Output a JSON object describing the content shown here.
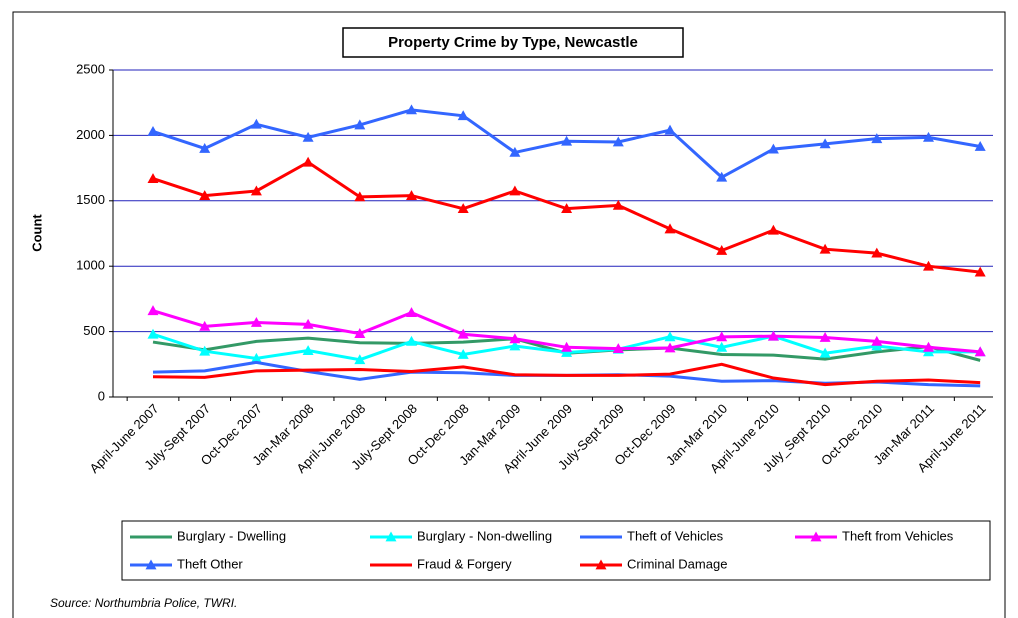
{
  "chart_data": {
    "type": "line",
    "title": "Property Crime by Type, Newcastle",
    "y_label": "Count",
    "source": "Source: Northumbria Police, TWRI.",
    "categories": [
      "April-June 2007",
      "July-Sept 2007",
      "Oct-Dec 2007",
      "Jan-Mar 2008",
      "April-June 2008",
      "July-Sept 2008",
      "Oct-Dec 2008",
      "Jan-Mar 2009",
      "April-June 2009",
      "July-Sept 2009",
      "Oct-Dec 2009",
      "Jan-Mar 2010",
      "April-June 2010",
      "July_Sept 2010",
      "Oct-Dec 2010",
      "Jan-Mar 2011",
      "April-June 2011"
    ],
    "series": [
      {
        "name": "Burglary - Dwelling",
        "color": "#339966",
        "marker": "none",
        "values": [
          420,
          360,
          425,
          450,
          415,
          410,
          420,
          445,
          335,
          360,
          375,
          325,
          320,
          290,
          345,
          385,
          280
        ]
      },
      {
        "name": "Burglary - Non-dwelling",
        "color": "#00ffff",
        "marker": "triangle",
        "values": [
          480,
          350,
          295,
          355,
          285,
          425,
          325,
          390,
          340,
          365,
          460,
          380,
          465,
          335,
          390,
          345,
          345
        ]
      },
      {
        "name": "Theft of Vehicles",
        "color": "#3366ff",
        "marker": "none",
        "values": [
          190,
          200,
          265,
          195,
          135,
          190,
          185,
          165,
          165,
          170,
          160,
          120,
          125,
          105,
          115,
          95,
          85
        ]
      },
      {
        "name": "Theft from Vehicles",
        "color": "#ff00ff",
        "marker": "triangle",
        "values": [
          660,
          540,
          570,
          555,
          485,
          645,
          480,
          445,
          380,
          370,
          375,
          460,
          465,
          455,
          425,
          380,
          345
        ]
      },
      {
        "name": "Theft Other",
        "color": "#3366ff",
        "marker": "triangle",
        "values": [
          2030,
          1900,
          2085,
          1985,
          2080,
          2195,
          2150,
          1870,
          1955,
          1950,
          2040,
          1680,
          1895,
          1935,
          1975,
          1985,
          1915
        ]
      },
      {
        "name": "Fraud & Forgery",
        "color": "#ff0000",
        "marker": "none",
        "values": [
          155,
          150,
          200,
          205,
          210,
          195,
          230,
          170,
          165,
          165,
          175,
          250,
          145,
          95,
          120,
          130,
          110
        ]
      },
      {
        "name": "Criminal Damage",
        "color": "#ff0000",
        "marker": "triangle",
        "values": [
          1670,
          1540,
          1575,
          1795,
          1530,
          1540,
          1440,
          1575,
          1440,
          1465,
          1285,
          1120,
          1275,
          1130,
          1100,
          1000,
          955
        ]
      }
    ],
    "ylim": [
      0,
      2500
    ],
    "yticks": [
      0,
      500,
      1000,
      1500,
      2000,
      2500
    ],
    "grid": true,
    "grid_color": "#2222bb"
  }
}
